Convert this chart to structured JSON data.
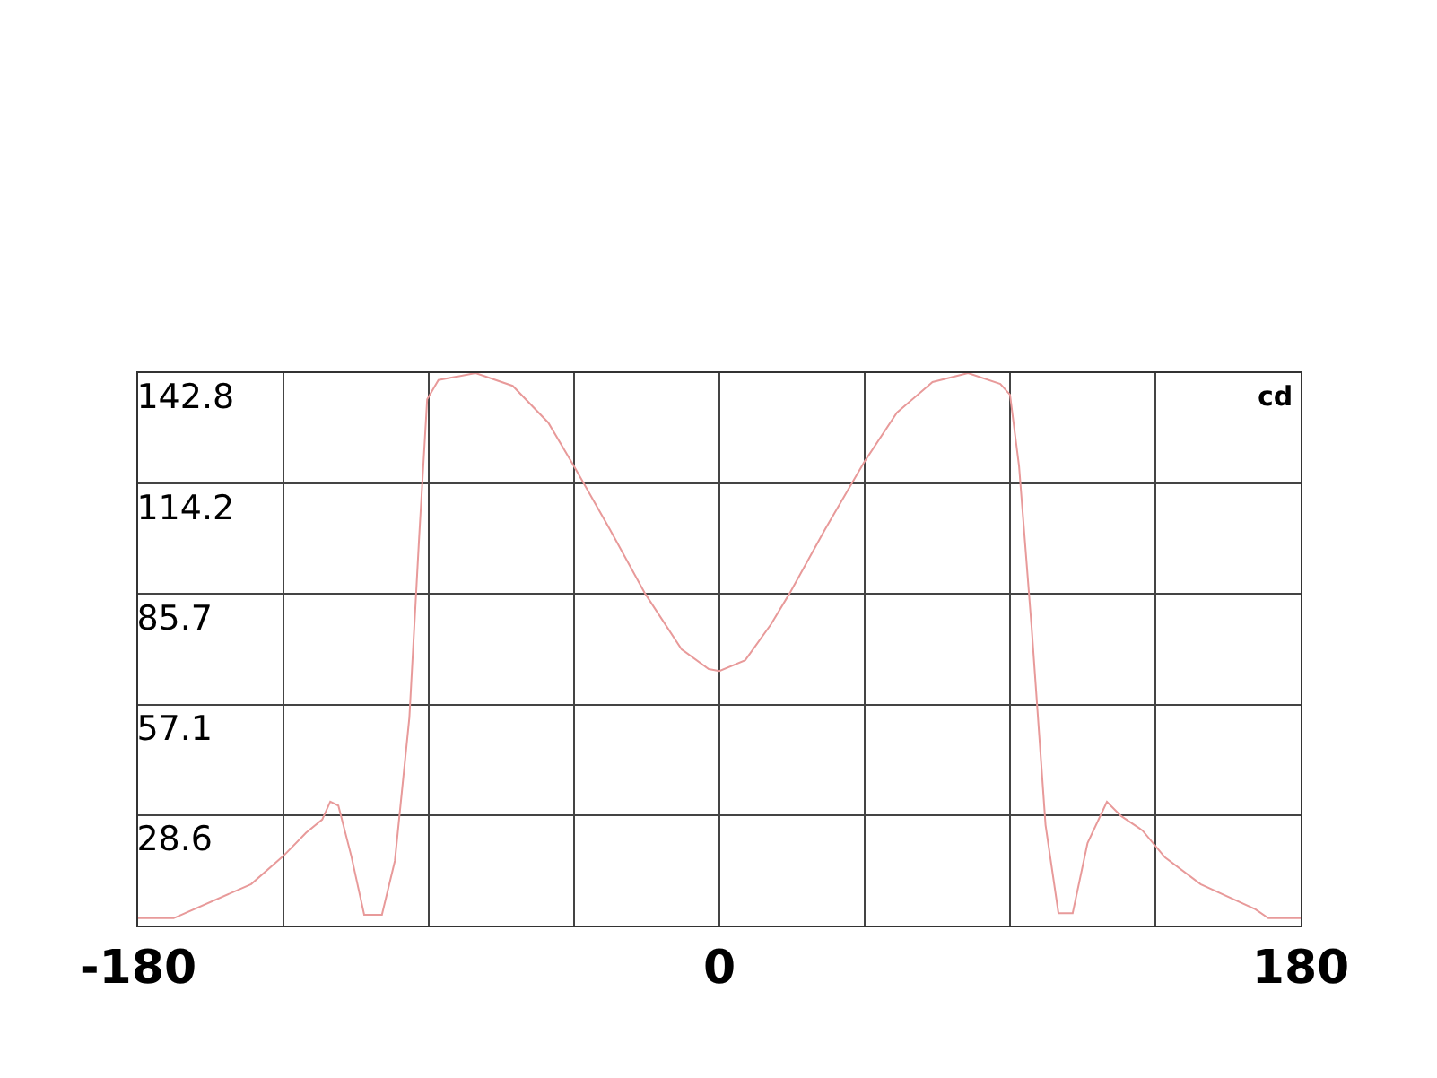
{
  "chart_data": {
    "type": "line",
    "ylabel": "cd",
    "x": [
      -180,
      -169,
      -145,
      -135,
      -128,
      -123,
      -120.5,
      -118,
      -114,
      -110,
      -104.5,
      -100.5,
      -96,
      -93,
      -90.5,
      -87,
      -75.5,
      -64,
      -53,
      -45,
      -34,
      -23,
      -11.7,
      -3.3,
      0,
      8,
      16,
      21.7,
      32.8,
      45,
      55,
      66,
      77,
      87,
      90,
      92.8,
      96.7,
      101,
      105,
      109.4,
      114,
      120,
      124.4,
      131,
      138,
      149,
      166,
      170,
      180
    ],
    "series": [
      {
        "color": "#e89a9a",
        "values": [
          1.9,
          1.9,
          10.7,
          18,
          24,
          27.4,
          32,
          31,
          18,
          2.8,
          2.8,
          16.7,
          53.8,
          100,
          136,
          141,
          142.8,
          139.5,
          130,
          118.7,
          102.5,
          85.8,
          71.4,
          66.3,
          65.8,
          68.6,
          77.9,
          85.8,
          102.5,
          120,
          132.6,
          140.5,
          142.8,
          140,
          137.2,
          118.7,
          77,
          26,
          3.2,
          3.2,
          21.3,
          32,
          28.3,
          24.6,
          17.6,
          10.7,
          4.2,
          1.9,
          1.9
        ]
      }
    ],
    "xlim": [
      -180,
      180
    ],
    "xticks": [
      -180,
      {
        "value": -135,
        "label": null
      },
      {
        "value": -90,
        "label": null
      },
      {
        "value": -45,
        "label": null
      },
      0,
      {
        "value": 45,
        "label": null
      },
      {
        "value": 90,
        "label": null
      },
      {
        "value": 135,
        "label": null
      },
      180
    ],
    "ylim": [
      0,
      142.8
    ],
    "yticks": [
      {
        "value": 0,
        "label": null
      },
      28.6,
      57.1,
      85.7,
      114.2,
      142.8
    ],
    "grid": true,
    "marker": "none",
    "line_style": "solid"
  }
}
